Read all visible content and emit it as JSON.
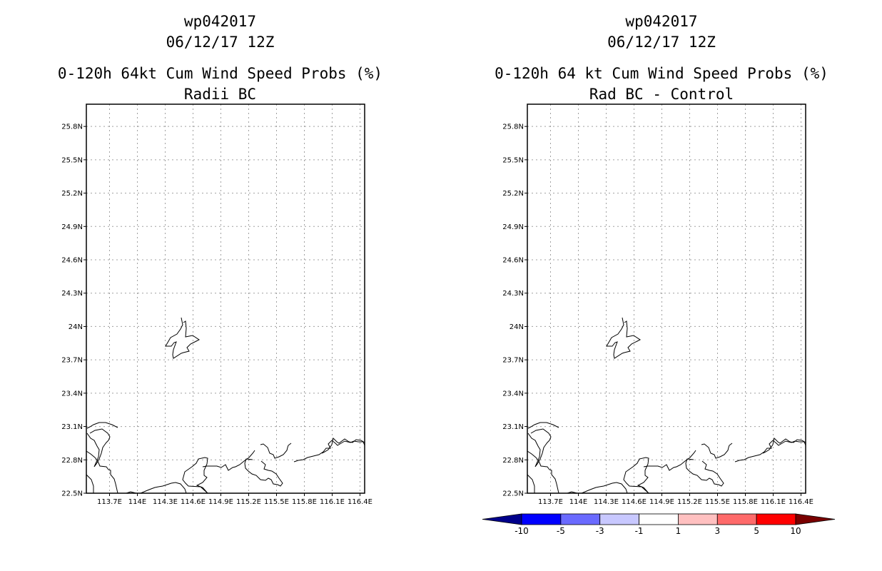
{
  "chart_data": [
    {
      "type": "map",
      "storm_id": "wp042017",
      "datetime": "06/12/17 12Z",
      "title": "0-120h 64kt Cum Wind Speed Probs (%)",
      "subtitle": "Radii BC",
      "xlim": [
        113.45,
        116.45
      ],
      "ylim": [
        22.5,
        26.0
      ],
      "x_ticks": [
        113.7,
        114.0,
        114.3,
        114.6,
        114.9,
        115.2,
        115.5,
        115.8,
        116.1,
        116.4
      ],
      "x_tick_labels": [
        "113.7E",
        "114E",
        "114.3E",
        "114.6E",
        "114.9E",
        "115.2E",
        "115.5E",
        "115.8E",
        "116.1E",
        "116.4E"
      ],
      "y_ticks": [
        22.5,
        22.8,
        23.1,
        23.4,
        23.7,
        24.0,
        24.3,
        24.6,
        24.9,
        25.2,
        25.5,
        25.8
      ],
      "y_tick_labels": [
        "22.5N",
        "22.8N",
        "23.1N",
        "23.4N",
        "23.7N",
        "24N",
        "24.3N",
        "24.6N",
        "24.9N",
        "25.2N",
        "25.5N",
        "25.8N"
      ],
      "grid": true
    },
    {
      "type": "map",
      "storm_id": "wp042017",
      "datetime": "06/12/17 12Z",
      "title": "0-120h 64 kt Cum Wind Speed Probs (%)",
      "subtitle": "Rad BC - Control",
      "xlim": [
        113.45,
        116.45
      ],
      "ylim": [
        22.5,
        26.0
      ],
      "x_ticks": [
        113.7,
        114.0,
        114.3,
        114.6,
        114.9,
        115.2,
        115.5,
        115.8,
        116.1,
        116.4
      ],
      "x_tick_labels": [
        "113.7E",
        "114E",
        "114.3E",
        "114.6E",
        "114.9E",
        "115.2E",
        "115.5E",
        "115.8E",
        "116.1E",
        "116.4E"
      ],
      "y_ticks": [
        22.5,
        22.8,
        23.1,
        23.4,
        23.7,
        24.0,
        24.3,
        24.6,
        24.9,
        25.2,
        25.5,
        25.8
      ],
      "y_tick_labels": [
        "22.5N",
        "22.8N",
        "23.1N",
        "23.4N",
        "23.7N",
        "24N",
        "24.3N",
        "24.6N",
        "24.9N",
        "25.2N",
        "25.5N",
        "25.8N"
      ],
      "grid": true,
      "colorbar": {
        "levels": [
          -10,
          -5,
          -3,
          -1,
          1,
          3,
          5,
          10
        ],
        "labels": [
          "-10",
          "-5",
          "-3",
          "-1",
          "1",
          "3",
          "5",
          "10"
        ],
        "colors": [
          "#00008b",
          "#0000ff",
          "#6a6aff",
          "#c8c8ff",
          "#ffffff",
          "#ffc0c0",
          "#ff6a6a",
          "#ff0000",
          "#7a0000"
        ]
      }
    }
  ],
  "colors": {
    "land_outline": "#000000",
    "grid": "#a0a0a0"
  }
}
